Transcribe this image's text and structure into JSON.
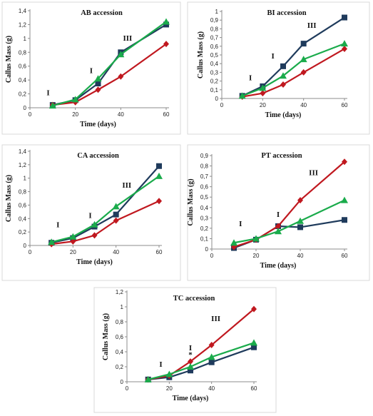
{
  "colors": {
    "navy": "#1f3b5c",
    "red": "#c0181f",
    "green": "#1aab4b"
  },
  "chart_data": [
    {
      "type": "line",
      "title": "AB accession",
      "xlabel": "Time (days)",
      "ylabel": "Callus Mass (g)",
      "xlim": [
        0,
        60
      ],
      "ylim": [
        0,
        1.4
      ],
      "xticks": [
        "0",
        "20",
        "40",
        "60"
      ],
      "yticks": [
        "0",
        "0,2",
        "0,4",
        "0,6",
        "0,8",
        "1",
        "1,2",
        "1,4"
      ],
      "x": [
        10,
        20,
        30,
        40,
        60
      ],
      "series": [
        {
          "color": "navy",
          "marker": "square",
          "values": [
            0.04,
            0.11,
            0.35,
            0.8,
            1.2
          ]
        },
        {
          "color": "red",
          "marker": "diamond",
          "values": [
            0.04,
            0.08,
            0.26,
            0.45,
            0.92
          ]
        },
        {
          "color": "green",
          "marker": "triangle",
          "values": [
            0.03,
            0.12,
            0.42,
            0.77,
            1.24
          ]
        }
      ],
      "annotations": [
        {
          "text": "I",
          "x": 8,
          "y": 0.18
        },
        {
          "text": "I",
          "x": 27,
          "y": 0.5
        },
        {
          "text": "III",
          "x": 43,
          "y": 0.97
        }
      ]
    },
    {
      "type": "line",
      "title": "BI accession",
      "xlabel": "Time (days)",
      "ylabel": "Callus Mass (g)",
      "xlim": [
        0,
        60
      ],
      "ylim": [
        0,
        1
      ],
      "xticks": [
        "0",
        "20",
        "40",
        "60"
      ],
      "yticks": [
        "0",
        "0,1",
        "0,2",
        "0,3",
        "0,4",
        "0,5",
        "0,6",
        "0,7",
        "0,8",
        "0,9",
        "1"
      ],
      "x": [
        10,
        20,
        30,
        40,
        60
      ],
      "series": [
        {
          "color": "navy",
          "marker": "square",
          "values": [
            0.03,
            0.14,
            0.37,
            0.63,
            0.93
          ]
        },
        {
          "color": "red",
          "marker": "diamond",
          "values": [
            0.02,
            0.06,
            0.16,
            0.3,
            0.57
          ]
        },
        {
          "color": "green",
          "marker": "triangle",
          "values": [
            0.03,
            0.12,
            0.26,
            0.45,
            0.63
          ]
        }
      ],
      "annotations": [
        {
          "text": "I",
          "x": 14,
          "y": 0.21
        },
        {
          "text": "I",
          "x": 25,
          "y": 0.46
        },
        {
          "text": "III",
          "x": 44,
          "y": 0.81
        }
      ]
    },
    {
      "type": "line",
      "title": "CA accession",
      "xlabel": "Time (days)",
      "ylabel": "Callus Mass (g)",
      "xlim": [
        0,
        60
      ],
      "ylim": [
        0,
        1.4
      ],
      "xticks": [
        "0",
        "20",
        "40",
        "60"
      ],
      "yticks": [
        "0",
        "0,2",
        "0,4",
        "0,6",
        "0,8",
        "1",
        "1,2",
        "1,4"
      ],
      "x": [
        10,
        20,
        30,
        40,
        60
      ],
      "series": [
        {
          "color": "navy",
          "marker": "square",
          "values": [
            0.04,
            0.11,
            0.28,
            0.46,
            1.18
          ]
        },
        {
          "color": "red",
          "marker": "diamond",
          "values": [
            0.02,
            0.06,
            0.15,
            0.37,
            0.66
          ]
        },
        {
          "color": "green",
          "marker": "triangle",
          "values": [
            0.05,
            0.13,
            0.31,
            0.58,
            1.03
          ]
        }
      ],
      "annotations": [
        {
          "text": "I",
          "x": 13,
          "y": 0.27
        },
        {
          "text": "I",
          "x": 28,
          "y": 0.41
        },
        {
          "text": "III",
          "x": 45,
          "y": 0.86
        }
      ]
    },
    {
      "type": "line",
      "title": "PT accession",
      "xlabel": "Time (days)",
      "ylabel": "Callus Mass (g)",
      "xlim": [
        0,
        60
      ],
      "ylim": [
        0,
        0.9
      ],
      "xticks": [
        "0",
        "20",
        "40",
        "60"
      ],
      "yticks": [
        "0",
        "0,1",
        "0,2",
        "0,3",
        "0,4",
        "0,5",
        "0,6",
        "0,7",
        "0,8",
        "0,9"
      ],
      "x": [
        10,
        20,
        30,
        40,
        60
      ],
      "series": [
        {
          "color": "navy",
          "marker": "square",
          "values": [
            0.01,
            0.09,
            0.22,
            0.21,
            0.28
          ]
        },
        {
          "color": "red",
          "marker": "diamond",
          "values": [
            0.02,
            0.09,
            0.22,
            0.47,
            0.84
          ]
        },
        {
          "color": "green",
          "marker": "triangle",
          "values": [
            0.06,
            0.1,
            0.17,
            0.27,
            0.47
          ]
        }
      ],
      "annotations": [
        {
          "text": "I",
          "x": 13,
          "y": 0.22
        },
        {
          "text": "I",
          "x": 30,
          "y": 0.31
        },
        {
          "text": "III",
          "x": 46,
          "y": 0.71
        }
      ]
    },
    {
      "type": "line",
      "title": "TC accession",
      "xlabel": "Time (days)",
      "ylabel": "Callus Mass (g)",
      "xlim": [
        0,
        60
      ],
      "ylim": [
        0,
        1.2
      ],
      "xticks": [
        "0",
        "20",
        "40",
        "60"
      ],
      "yticks": [
        "0",
        "0,2",
        "0,4",
        "0,6",
        "0,8",
        "1",
        "1,2"
      ],
      "x": [
        10,
        20,
        30,
        40,
        60
      ],
      "series": [
        {
          "color": "navy",
          "marker": "square",
          "values": [
            0.03,
            0.06,
            0.15,
            0.26,
            0.46
          ]
        },
        {
          "color": "red",
          "marker": "diamond",
          "values": [
            0.03,
            0.08,
            0.27,
            0.49,
            0.97
          ]
        },
        {
          "color": "green",
          "marker": "triangle",
          "values": [
            0.03,
            0.1,
            0.2,
            0.33,
            0.52
          ]
        }
      ],
      "annotations": [
        {
          "text": "I",
          "x": 16,
          "y": 0.2
        },
        {
          "text": "I",
          "x": 30,
          "y": 0.42
        },
        {
          "text": "*",
          "x": 30,
          "y": 0.33
        },
        {
          "text": "III",
          "x": 42,
          "y": 0.81
        }
      ]
    }
  ]
}
